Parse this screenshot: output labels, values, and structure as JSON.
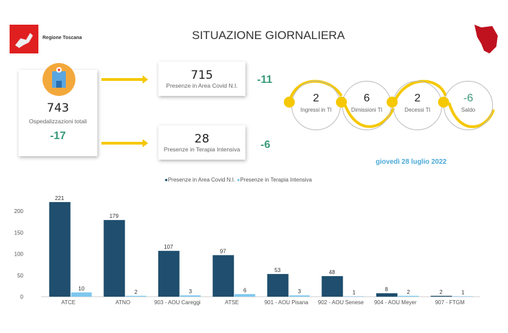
{
  "header": {
    "logo_text": "Regione Toscana",
    "title": "SITUAZIONE GIORNALIERA"
  },
  "total": {
    "value": "743",
    "label": "Ospedalizzazioni totali",
    "delta": "-17"
  },
  "area_covid": {
    "value": "715",
    "label": "Presenze in Area Covid N.I.",
    "delta": "-11"
  },
  "ti": {
    "value": "28",
    "label": "Presenze in Terapia Intensiva",
    "delta": "-6"
  },
  "flow": [
    {
      "value": "2",
      "label": "Ingressi in TI"
    },
    {
      "value": "6",
      "label": "Dimissioni TI"
    },
    {
      "value": "2",
      "label": "Decessi TI"
    },
    {
      "value": "-6",
      "label": "Saldo"
    }
  ],
  "date": "giovedì 28 luglio 2022",
  "colors": {
    "dark": "#1f4e6e",
    "light": "#7ec8ee",
    "yellow": "#f5c800",
    "green": "#3a9a7a"
  },
  "chart_data": {
    "type": "bar",
    "categories": [
      "ATCE",
      "ATNO",
      "903 - AOU Careggi",
      "ATSE",
      "901 - AOU Pisana",
      "902 - AOU Senese",
      "904 - AOU Meyer",
      "907 - FTGM"
    ],
    "series": [
      {
        "name": "Presenze in Area Covid N.I.",
        "values": [
          221,
          179,
          107,
          97,
          53,
          48,
          8,
          2
        ]
      },
      {
        "name": "Presenze in Terapia Intensiva",
        "values": [
          10,
          2,
          3,
          6,
          3,
          1,
          2,
          1
        ]
      }
    ],
    "yticks": [
      0,
      50,
      100,
      150,
      200
    ],
    "ylim": [
      0,
      230
    ],
    "legend": "top-center"
  }
}
